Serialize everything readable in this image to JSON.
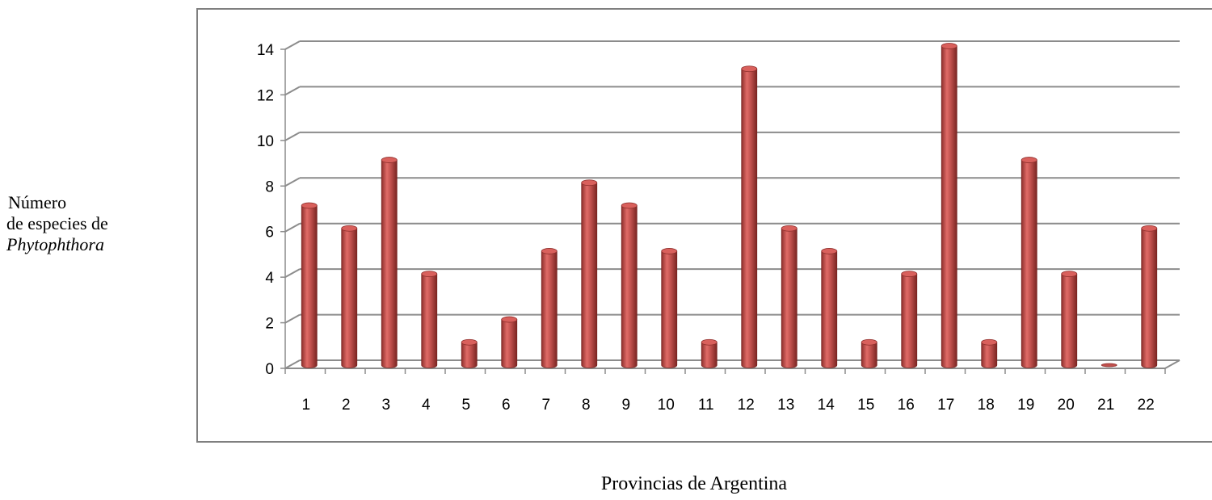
{
  "chart_data": {
    "type": "bar",
    "categories": [
      "1",
      "2",
      "3",
      "4",
      "5",
      "6",
      "7",
      "8",
      "9",
      "10",
      "11",
      "12",
      "13",
      "14",
      "15",
      "16",
      "17",
      "18",
      "19",
      "20",
      "21",
      "22"
    ],
    "values": [
      7,
      6,
      9,
      4,
      1,
      2,
      5,
      8,
      7,
      5,
      1,
      13,
      6,
      5,
      1,
      4,
      14,
      1,
      9,
      4,
      0,
      6
    ],
    "title": "",
    "xlabel": "Provincias de Argentina",
    "ylabel_lines": [
      "Número",
      "de especies de",
      "Phytophthora"
    ],
    "ylim": [
      0,
      14
    ],
    "yticks": [
      0,
      2,
      4,
      6,
      8,
      10,
      12,
      14
    ],
    "grid": true,
    "legend": "none",
    "style": "3d-cylinder",
    "colors": {
      "bar": "#c0504d",
      "bar_dark": "#8e2f2c",
      "bar_light": "#e88a87",
      "grid": "#8c8c8c",
      "frame": "#7f7f7f"
    }
  }
}
